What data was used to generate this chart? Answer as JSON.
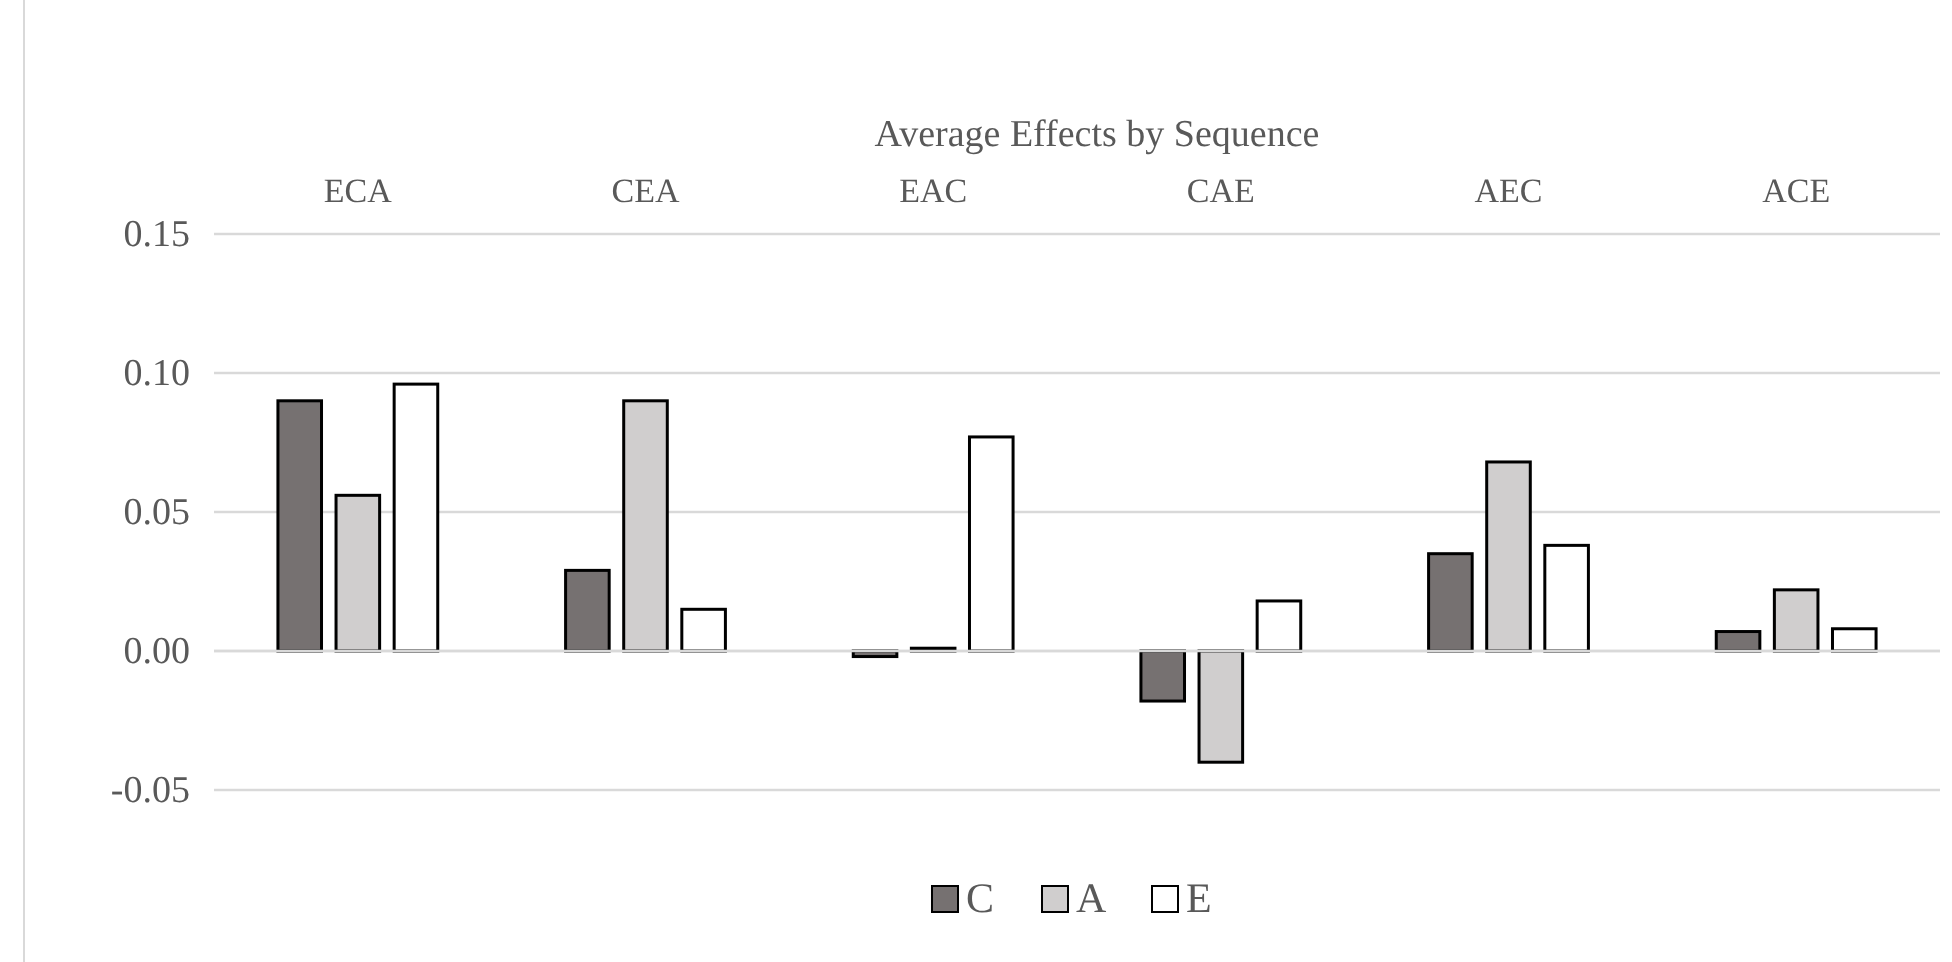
{
  "chart_data": {
    "type": "bar",
    "title": "Average Effects by Sequence",
    "categories": [
      "ECA",
      "CEA",
      "EAC",
      "CAE",
      "AEC",
      "ACE"
    ],
    "series": [
      {
        "name": "C",
        "color": "#767171",
        "values": [
          0.09,
          0.029,
          -0.002,
          -0.018,
          0.035,
          0.007
        ]
      },
      {
        "name": "A",
        "color": "#d0cece",
        "values": [
          0.056,
          0.09,
          0.001,
          -0.04,
          0.068,
          0.022
        ]
      },
      {
        "name": "E",
        "color": "#ffffff",
        "values": [
          0.096,
          0.015,
          0.077,
          0.018,
          0.038,
          0.008
        ]
      }
    ],
    "ylim": [
      -0.05,
      0.15
    ],
    "yticks": [
      {
        "value": -0.05,
        "label": "-0.05"
      },
      {
        "value": 0,
        "label": "0.00"
      },
      {
        "value": 0.05,
        "label": "0.05"
      },
      {
        "value": 0.1,
        "label": "0.10"
      },
      {
        "value": 0.15,
        "label": "0.15"
      }
    ],
    "grid": "y",
    "legend": "bottom"
  }
}
